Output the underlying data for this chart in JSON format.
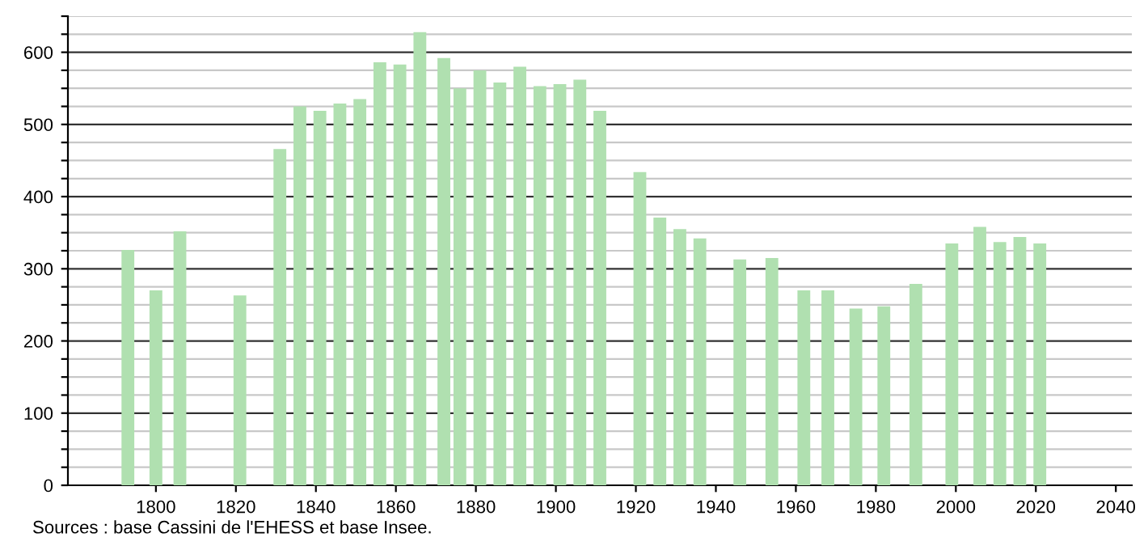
{
  "chart_data": {
    "type": "bar",
    "x": [
      1793,
      1800,
      1806,
      1821,
      1831,
      1836,
      1841,
      1846,
      1851,
      1856,
      1861,
      1866,
      1872,
      1876,
      1881,
      1886,
      1891,
      1896,
      1901,
      1906,
      1911,
      1921,
      1926,
      1931,
      1936,
      1946,
      1954,
      1962,
      1968,
      1975,
      1982,
      1990,
      1999,
      2006,
      2011,
      2016,
      2021
    ],
    "values": [
      326,
      270,
      352,
      263,
      466,
      525,
      519,
      529,
      535,
      586,
      583,
      628,
      592,
      550,
      575,
      558,
      580,
      553,
      556,
      562,
      519,
      434,
      371,
      355,
      342,
      313,
      315,
      270,
      270,
      245,
      248,
      279,
      335,
      358,
      337,
      344,
      335
    ],
    "color": "#b0e0b0",
    "xlim": [
      1778,
      2044
    ],
    "xticks": [
      1800,
      1820,
      1840,
      1860,
      1880,
      1900,
      1920,
      1940,
      1960,
      1980,
      2000,
      2020,
      2040
    ],
    "ylim": [
      0,
      650
    ],
    "yticks": [
      0,
      {
        "value": 25,
        "label": null
      },
      {
        "value": 50,
        "label": null
      },
      {
        "value": 75,
        "label": null
      },
      100,
      {
        "value": 125,
        "label": null
      },
      {
        "value": 150,
        "label": null
      },
      {
        "value": 175,
        "label": null
      },
      200,
      {
        "value": 225,
        "label": null
      },
      {
        "value": 250,
        "label": null
      },
      {
        "value": 275,
        "label": null
      },
      300,
      {
        "value": 325,
        "label": null
      },
      {
        "value": 350,
        "label": null
      },
      {
        "value": 375,
        "label": null
      },
      400,
      {
        "value": 425,
        "label": null
      },
      {
        "value": 450,
        "label": null
      },
      {
        "value": 475,
        "label": null
      },
      500,
      {
        "value": 525,
        "label": null
      },
      {
        "value": 550,
        "label": null
      },
      {
        "value": 575,
        "label": null
      },
      600,
      {
        "value": 625,
        "label": null
      },
      {
        "value": 650,
        "label": null
      }
    ],
    "grid": "y",
    "annotations": [
      "Sources : base Cassini de l'EHESS et base Insee."
    ]
  }
}
